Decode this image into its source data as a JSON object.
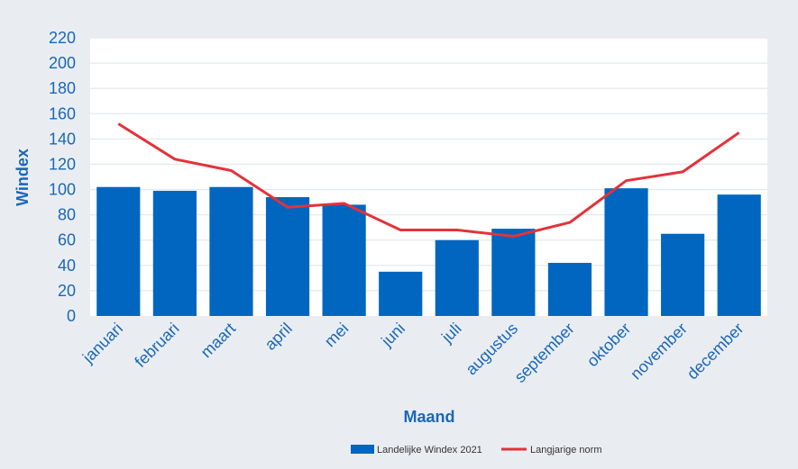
{
  "chart_data": {
    "type": "bar",
    "xlabel": "Maand",
    "ylabel": "Windex",
    "ylim": [
      0,
      220
    ],
    "yticks": [
      0,
      20,
      40,
      60,
      80,
      100,
      120,
      140,
      160,
      180,
      200,
      220
    ],
    "grid": true,
    "legend_position": "bottom",
    "categories": [
      "januari",
      "februari",
      "maart",
      "april",
      "mei",
      "juni",
      "juli",
      "augustus",
      "september",
      "oktober",
      "november",
      "december"
    ],
    "series": [
      {
        "name": "Landelijke Windex 2021",
        "type": "bar",
        "color": "#0066bf",
        "values": [
          102,
          99,
          102,
          94,
          88,
          35,
          60,
          69,
          42,
          101,
          65,
          96
        ]
      },
      {
        "name": "Langjarige norm",
        "type": "line",
        "color": "#e3323b",
        "values": [
          152,
          124,
          115,
          86,
          89,
          68,
          68,
          63,
          74,
          107,
          114,
          145
        ]
      }
    ]
  }
}
